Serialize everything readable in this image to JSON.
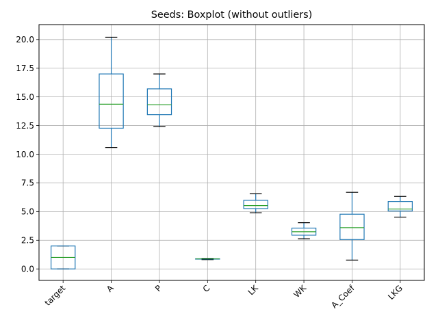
{
  "chart_data": {
    "type": "boxplot",
    "title": "Seeds: Boxplot (without outliers)",
    "xlabel": "",
    "ylabel": "",
    "ylim": [
      -1.0,
      21.3
    ],
    "yticks": [
      0.0,
      2.5,
      5.0,
      7.5,
      10.0,
      12.5,
      15.0,
      17.5,
      20.0
    ],
    "ytick_labels": [
      "0.0",
      "2.5",
      "5.0",
      "7.5",
      "10.0",
      "12.5",
      "15.0",
      "17.5",
      "20.0"
    ],
    "grid": true,
    "legend": "none",
    "categories": [
      "target",
      "A",
      "P",
      "C",
      "LK",
      "WK",
      "A_Coef",
      "LKG"
    ],
    "boxes": [
      {
        "name": "target",
        "whisker_low": 0.0,
        "q1": 0.0,
        "median": 1.0,
        "q3": 2.0,
        "whisker_high": 2.0
      },
      {
        "name": "A",
        "whisker_low": 10.59,
        "q1": 12.27,
        "median": 14.36,
        "q3": 17.0,
        "whisker_high": 20.2
      },
      {
        "name": "P",
        "whisker_low": 12.41,
        "q1": 13.45,
        "median": 14.32,
        "q3": 15.7,
        "whisker_high": 17.0
      },
      {
        "name": "C",
        "whisker_low": 0.81,
        "q1": 0.857,
        "median": 0.873,
        "q3": 0.888,
        "whisker_high": 0.918
      },
      {
        "name": "LK",
        "whisker_low": 4.9,
        "q1": 5.26,
        "median": 5.52,
        "q3": 5.98,
        "whisker_high": 6.55
      },
      {
        "name": "WK",
        "whisker_low": 2.63,
        "q1": 2.94,
        "median": 3.24,
        "q3": 3.56,
        "whisker_high": 4.03
      },
      {
        "name": "A_Coef",
        "whisker_low": 0.77,
        "q1": 2.56,
        "median": 3.6,
        "q3": 4.77,
        "whisker_high": 6.68
      },
      {
        "name": "LKG",
        "whisker_low": 4.52,
        "q1": 5.05,
        "median": 5.22,
        "q3": 5.88,
        "whisker_high": 6.32
      }
    ],
    "colors": {
      "box": "#1f77b4",
      "median": "#2ca02c",
      "cap": "#000000",
      "grid": "#b0b0b0",
      "axis": "#000000"
    }
  }
}
